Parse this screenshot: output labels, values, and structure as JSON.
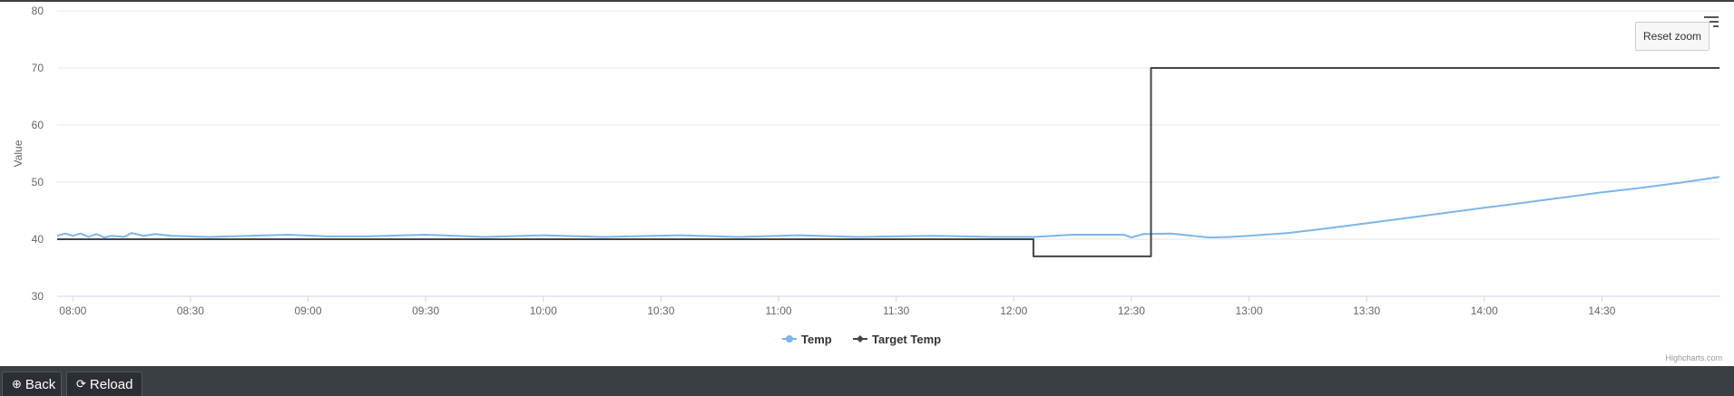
{
  "chart_data": {
    "type": "line",
    "title": "",
    "ylabel": "Value",
    "xlabel": "",
    "ylim": [
      30,
      80
    ],
    "yticks": [
      "30",
      "40",
      "50",
      "60",
      "70",
      "80"
    ],
    "xlim": [
      "07:56",
      "15:00"
    ],
    "xticks": [
      "08:00",
      "08:30",
      "09:00",
      "09:30",
      "10:00",
      "10:30",
      "11:00",
      "11:30",
      "12:00",
      "12:30",
      "13:00",
      "13:30",
      "14:00",
      "14:30"
    ],
    "grid": true,
    "legend": "bottom-center",
    "series": [
      {
        "name": "Temp",
        "color": "#7cb5ec",
        "points": [
          [
            "07:56",
            40.6
          ],
          [
            "07:58",
            41.0
          ],
          [
            "08:00",
            40.6
          ],
          [
            "08:02",
            41.0
          ],
          [
            "08:04",
            40.4
          ],
          [
            "08:06",
            40.9
          ],
          [
            "08:08",
            40.3
          ],
          [
            "08:10",
            40.6
          ],
          [
            "08:13",
            40.4
          ],
          [
            "08:15",
            41.1
          ],
          [
            "08:18",
            40.6
          ],
          [
            "08:21",
            40.9
          ],
          [
            "08:25",
            40.6
          ],
          [
            "08:35",
            40.4
          ],
          [
            "08:45",
            40.6
          ],
          [
            "08:55",
            40.8
          ],
          [
            "09:05",
            40.5
          ],
          [
            "09:15",
            40.5
          ],
          [
            "09:30",
            40.8
          ],
          [
            "09:45",
            40.4
          ],
          [
            "10:00",
            40.7
          ],
          [
            "10:15",
            40.4
          ],
          [
            "10:35",
            40.7
          ],
          [
            "10:50",
            40.4
          ],
          [
            "11:05",
            40.7
          ],
          [
            "11:20",
            40.4
          ],
          [
            "11:40",
            40.6
          ],
          [
            "11:55",
            40.4
          ],
          [
            "12:05",
            40.4
          ],
          [
            "12:15",
            40.8
          ],
          [
            "12:28",
            40.8
          ],
          [
            "12:30",
            40.3
          ],
          [
            "12:33",
            40.9
          ],
          [
            "12:40",
            41.0
          ],
          [
            "12:43",
            40.8
          ],
          [
            "12:47",
            40.5
          ],
          [
            "12:50",
            40.3
          ],
          [
            "12:55",
            40.4
          ],
          [
            "13:00",
            40.6
          ],
          [
            "13:10",
            41.1
          ],
          [
            "13:20",
            41.9
          ],
          [
            "13:30",
            42.8
          ],
          [
            "13:40",
            43.7
          ],
          [
            "13:50",
            44.6
          ],
          [
            "14:00",
            45.5
          ],
          [
            "14:10",
            46.4
          ],
          [
            "14:20",
            47.3
          ],
          [
            "14:30",
            48.2
          ],
          [
            "14:40",
            49.0
          ],
          [
            "14:50",
            49.9
          ],
          [
            "15:00",
            50.9
          ]
        ]
      },
      {
        "name": "Target Temp",
        "color": "#434348",
        "step": true,
        "points": [
          [
            "07:56",
            40
          ],
          [
            "12:05",
            40
          ],
          [
            "12:05",
            37
          ],
          [
            "12:35",
            37
          ],
          [
            "12:35",
            70
          ],
          [
            "15:00",
            70
          ]
        ]
      }
    ]
  },
  "buttons": {
    "reset_zoom": "Reset zoom"
  },
  "credit": "Highcharts.com",
  "footer": {
    "back_label": "Back",
    "reload_label": "Reload",
    "back_icon": "circle-arrow-left-icon",
    "reload_icon": "refresh-icon"
  },
  "colors": {
    "footer_bg": "#3a3f44",
    "grid": "#e6e6e6"
  }
}
